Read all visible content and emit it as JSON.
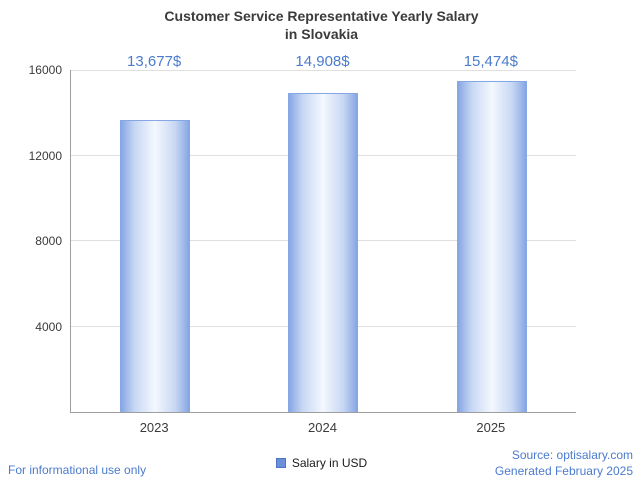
{
  "header": {
    "title_line1": "Customer Service Representative Yearly Salary",
    "title_line2": "in Slovakia"
  },
  "chart_data": {
    "type": "bar",
    "title": "Customer Service Representative Yearly Salary in Slovakia",
    "categories": [
      "2023",
      "2024",
      "2025"
    ],
    "values": [
      13677,
      14908,
      15474
    ],
    "value_labels": [
      "13,677$",
      "14,908$",
      "15,474$"
    ],
    "xlabel": "",
    "ylabel": "",
    "ylim": [
      0,
      16000
    ],
    "yticks": [
      4000,
      8000,
      12000,
      16000
    ],
    "ytick_labels": [
      "4000",
      "8000",
      "12000",
      "16000"
    ],
    "grid": true,
    "legend_position": "bottom",
    "series_name": "Salary in USD",
    "bar_edge_color": "#86a6e4",
    "bar_center_color": "#f4f8fe"
  },
  "legend": {
    "label": "Salary in USD"
  },
  "footer": {
    "left": "For informational use only",
    "source": "Source: optisalary.com",
    "generated": "Generated February 2025"
  },
  "colors": {
    "accent_blue": "#4b7bce",
    "text": "#3b3b3b"
  }
}
